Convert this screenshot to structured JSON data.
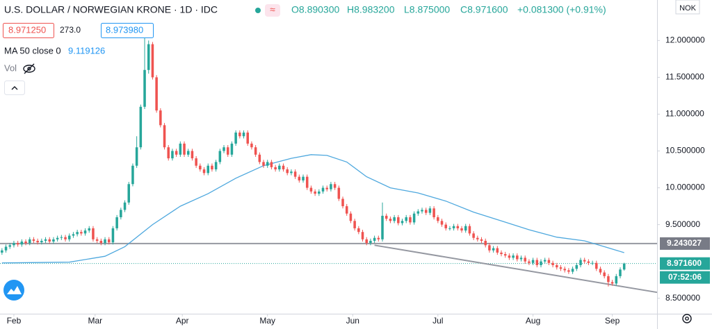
{
  "header": {
    "symbol": "U.S. DOLLAR / NORWEGIAN KRONE · 1D · IDC",
    "open": "O8.890300",
    "high": "H8.983200",
    "low": "L8.875000",
    "close": "C8.971600",
    "change": "+0.081300 (+0.91%)",
    "bid": "8.971250",
    "spread": "273.0",
    "ask": "8.973980",
    "volume": "Vol",
    "currency": "NOK"
  },
  "chart_data": {
    "type": "candlestick",
    "up_color": "#26a69a",
    "down_color": "#ef5350",
    "xlim": [
      -0.5,
      165.3
    ],
    "ylim": [
      8.29,
      12.55
    ],
    "xticks": [
      {
        "value": 3,
        "label": "Feb"
      },
      {
        "value": 23.5,
        "label": "Mar"
      },
      {
        "value": 45.5,
        "label": "Apr"
      },
      {
        "value": 67,
        "label": "May"
      },
      {
        "value": 88.5,
        "label": "Jun"
      },
      {
        "value": 110,
        "label": "Jul"
      },
      {
        "value": 134,
        "label": "Aug"
      },
      {
        "value": 154,
        "label": "Sep"
      }
    ],
    "yticks": [
      {
        "value": 12,
        "label": "12.000000"
      },
      {
        "value": 11.5,
        "label": "11.500000"
      },
      {
        "value": 11,
        "label": "11.000000"
      },
      {
        "value": 10.5,
        "label": "10.500000"
      },
      {
        "value": 10,
        "label": "10.000000"
      },
      {
        "value": 9.5,
        "label": "9.500000"
      },
      {
        "value": 8.5,
        "label": "8.500000"
      }
    ],
    "candles": {
      "open": [
        9.12,
        9.15,
        9.2,
        9.22,
        9.25,
        9.23,
        9.27,
        9.25,
        9.3,
        9.28,
        9.26,
        9.28,
        9.3,
        9.27,
        9.3,
        9.32,
        9.33,
        9.3,
        9.35,
        9.37,
        9.4,
        9.38,
        9.42,
        9.45,
        9.3,
        9.28,
        9.25,
        9.3,
        9.26,
        9.45,
        9.6,
        9.7,
        9.8,
        10.05,
        10.3,
        10.55,
        11.1,
        11.6,
        11.95,
        11.5,
        11.05,
        10.85,
        10.55,
        10.4,
        10.5,
        10.45,
        10.6,
        10.45,
        10.5,
        10.4,
        10.3,
        10.25,
        10.2,
        10.3,
        10.25,
        10.35,
        10.5,
        10.55,
        10.45,
        10.6,
        10.75,
        10.7,
        10.75,
        10.6,
        10.55,
        10.45,
        10.35,
        10.3,
        10.35,
        10.28,
        10.25,
        10.3,
        10.25,
        10.2,
        10.22,
        10.15,
        10.1,
        10.15,
        10.0,
        9.95,
        9.92,
        9.95,
        10.0,
        9.98,
        10.05,
        10.0,
        9.85,
        9.75,
        9.65,
        9.55,
        9.45,
        9.4,
        9.3,
        9.25,
        9.28,
        9.32,
        9.3,
        9.62,
        9.58,
        9.55,
        9.6,
        9.52,
        9.55,
        9.6,
        9.53,
        9.65,
        9.68,
        9.7,
        9.66,
        9.72,
        9.6,
        9.55,
        9.5,
        9.45,
        9.45,
        9.48,
        9.45,
        9.42,
        9.48,
        9.38,
        9.32,
        9.3,
        9.28,
        9.22,
        9.15,
        9.18,
        9.12,
        9.1,
        9.08,
        9.05,
        9.08,
        9.03,
        9.05,
        9.0,
        8.98,
        9.02,
        8.95,
        9.0,
        9.02,
        8.98,
        8.95,
        8.92,
        8.9,
        8.88,
        8.86,
        8.9,
        8.95,
        9.02,
        9.0,
        8.98,
        8.98,
        8.9,
        8.85,
        8.8,
        8.72,
        8.7,
        8.8,
        8.8903
      ],
      "high": [
        9.18,
        9.23,
        9.25,
        9.28,
        9.28,
        9.3,
        9.3,
        9.33,
        9.33,
        9.31,
        9.31,
        9.33,
        9.33,
        9.33,
        9.35,
        9.36,
        9.36,
        9.38,
        9.4,
        9.43,
        9.43,
        9.45,
        9.48,
        9.48,
        9.33,
        9.31,
        9.33,
        9.33,
        9.48,
        9.63,
        9.73,
        9.83,
        10.08,
        10.33,
        10.7,
        11.13,
        12.1,
        12.0,
        11.98,
        11.53,
        11.08,
        10.88,
        10.58,
        10.53,
        10.53,
        10.63,
        10.63,
        10.53,
        10.53,
        10.43,
        10.33,
        10.28,
        10.33,
        10.33,
        10.38,
        10.53,
        10.58,
        10.58,
        10.63,
        10.78,
        10.78,
        10.78,
        10.78,
        10.63,
        10.58,
        10.48,
        10.38,
        10.38,
        10.38,
        10.31,
        10.33,
        10.33,
        10.28,
        10.25,
        10.25,
        10.18,
        10.18,
        10.18,
        10.03,
        9.98,
        9.98,
        10.03,
        10.03,
        10.08,
        10.08,
        10.03,
        9.88,
        9.78,
        9.68,
        9.58,
        9.48,
        9.43,
        9.33,
        9.31,
        9.35,
        9.35,
        9.8,
        9.65,
        9.61,
        9.63,
        9.63,
        9.58,
        9.63,
        9.63,
        9.68,
        9.71,
        9.73,
        9.73,
        9.75,
        9.75,
        9.63,
        9.58,
        9.53,
        9.48,
        9.51,
        9.51,
        9.48,
        9.51,
        9.51,
        9.41,
        9.35,
        9.33,
        9.31,
        9.25,
        9.21,
        9.21,
        9.15,
        9.13,
        9.11,
        9.11,
        9.11,
        9.08,
        9.08,
        9.03,
        9.05,
        9.05,
        9.03,
        9.05,
        9.05,
        9.01,
        8.98,
        8.95,
        8.93,
        8.91,
        8.93,
        8.98,
        9.05,
        9.05,
        9.03,
        9.01,
        9.01,
        8.93,
        8.88,
        8.83,
        8.75,
        8.83,
        8.92,
        8.9832
      ],
      "low": [
        9.09,
        9.12,
        9.17,
        9.19,
        9.2,
        9.2,
        9.22,
        9.22,
        9.25,
        9.23,
        9.23,
        9.25,
        9.24,
        9.24,
        9.27,
        9.29,
        9.27,
        9.27,
        9.32,
        9.34,
        9.35,
        9.35,
        9.39,
        9.27,
        9.25,
        9.22,
        9.22,
        9.23,
        9.23,
        9.42,
        9.57,
        9.67,
        9.77,
        10.02,
        10.27,
        10.52,
        11.07,
        11.55,
        11.47,
        11.02,
        10.82,
        10.52,
        10.37,
        10.37,
        10.42,
        10.42,
        10.42,
        10.42,
        10.37,
        10.27,
        10.22,
        10.17,
        10.17,
        10.22,
        10.22,
        10.32,
        10.47,
        10.42,
        10.42,
        10.57,
        10.67,
        10.67,
        10.57,
        10.52,
        10.42,
        10.32,
        10.27,
        10.27,
        10.25,
        10.22,
        10.22,
        10.22,
        10.17,
        10.17,
        10.12,
        10.07,
        10.07,
        9.97,
        9.92,
        9.89,
        9.89,
        9.92,
        9.95,
        9.95,
        9.97,
        9.82,
        9.72,
        9.62,
        9.52,
        9.42,
        9.37,
        9.27,
        9.22,
        9.22,
        9.25,
        9.27,
        9.27,
        9.55,
        9.52,
        9.52,
        9.49,
        9.49,
        9.52,
        9.5,
        9.5,
        9.62,
        9.65,
        9.63,
        9.63,
        9.57,
        9.52,
        9.47,
        9.42,
        9.42,
        9.42,
        9.42,
        9.39,
        9.39,
        9.35,
        9.29,
        9.27,
        9.25,
        9.19,
        9.12,
        9.12,
        9.09,
        9.07,
        9.05,
        9.02,
        9.02,
        9.0,
        9.0,
        8.97,
        8.95,
        8.95,
        8.92,
        8.92,
        8.97,
        8.95,
        8.92,
        8.89,
        8.87,
        8.85,
        8.83,
        8.83,
        8.87,
        8.92,
        8.97,
        8.95,
        8.95,
        8.87,
        8.82,
        8.77,
        8.66,
        8.67,
        8.67,
        8.77,
        8.875
      ],
      "close": [
        9.15,
        9.2,
        9.22,
        9.25,
        9.23,
        9.27,
        9.25,
        9.3,
        9.28,
        9.26,
        9.28,
        9.3,
        9.27,
        9.3,
        9.32,
        9.33,
        9.3,
        9.35,
        9.37,
        9.4,
        9.38,
        9.42,
        9.45,
        9.3,
        9.28,
        9.25,
        9.3,
        9.26,
        9.45,
        9.6,
        9.7,
        9.8,
        10.05,
        10.3,
        10.55,
        11.1,
        11.6,
        11.95,
        11.5,
        11.05,
        10.85,
        10.55,
        10.4,
        10.5,
        10.45,
        10.6,
        10.45,
        10.5,
        10.4,
        10.3,
        10.25,
        10.2,
        10.3,
        10.25,
        10.35,
        10.5,
        10.55,
        10.45,
        10.6,
        10.75,
        10.7,
        10.75,
        10.6,
        10.55,
        10.45,
        10.35,
        10.3,
        10.35,
        10.28,
        10.25,
        10.3,
        10.25,
        10.2,
        10.22,
        10.15,
        10.1,
        10.15,
        10.0,
        9.95,
        9.92,
        9.95,
        10.0,
        9.98,
        10.05,
        10.0,
        9.85,
        9.75,
        9.65,
        9.55,
        9.45,
        9.4,
        9.3,
        9.25,
        9.28,
        9.32,
        9.3,
        9.62,
        9.58,
        9.55,
        9.6,
        9.52,
        9.55,
        9.6,
        9.53,
        9.65,
        9.68,
        9.7,
        9.66,
        9.72,
        9.6,
        9.55,
        9.5,
        9.45,
        9.45,
        9.48,
        9.45,
        9.42,
        9.48,
        9.38,
        9.32,
        9.3,
        9.28,
        9.22,
        9.15,
        9.18,
        9.12,
        9.1,
        9.08,
        9.05,
        9.08,
        9.03,
        9.05,
        9.0,
        8.98,
        9.02,
        8.95,
        9.0,
        9.02,
        8.98,
        8.95,
        8.92,
        8.9,
        8.88,
        8.86,
        8.9,
        8.95,
        9.02,
        9.0,
        8.98,
        8.98,
        8.9,
        8.85,
        8.8,
        8.72,
        8.7,
        8.8,
        8.89,
        8.9716
      ]
    },
    "ma": {
      "name": "MA 50 close 0",
      "color": "#4ea8de",
      "x": [
        0,
        17,
        26,
        31,
        38,
        45,
        52,
        59,
        66,
        73,
        78,
        82,
        87,
        92,
        98,
        105,
        112,
        119,
        126,
        133,
        140,
        147,
        152,
        157
      ],
      "values": [
        8.98,
        8.99,
        9.07,
        9.2,
        9.5,
        9.75,
        9.92,
        10.13,
        10.3,
        10.4,
        10.45,
        10.44,
        10.35,
        10.15,
        10.0,
        9.93,
        9.82,
        9.67,
        9.55,
        9.43,
        9.33,
        9.28,
        9.2,
        9.119126
      ]
    },
    "level": {
      "value": 9.243027,
      "color": "#9598a1"
    },
    "trendline": {
      "x": [
        94,
        165.3
      ],
      "values": [
        9.22,
        8.58
      ],
      "color": "#9598a1"
    },
    "last": {
      "value": 8.9716,
      "label": "8.971600",
      "countdown": "07:52:06"
    }
  }
}
